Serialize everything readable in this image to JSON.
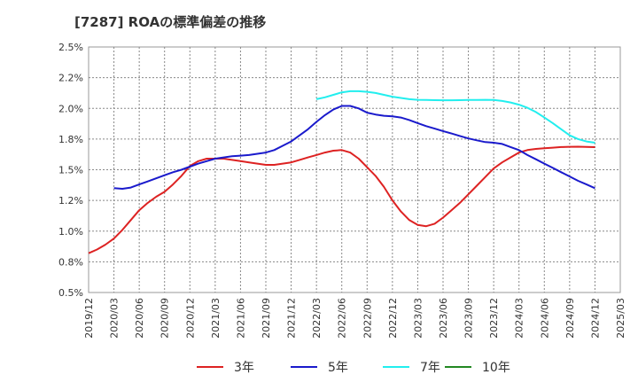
{
  "chart_data": {
    "type": "line",
    "title": "[7287]  ROAの標準偏差の推移",
    "x_ticks": [
      "2019/12",
      "2020/03",
      "2020/06",
      "2020/09",
      "2020/12",
      "2021/03",
      "2021/06",
      "2021/09",
      "2021/12",
      "2022/03",
      "2022/06",
      "2022/09",
      "2022/12",
      "2023/03",
      "2023/06",
      "2023/09",
      "2023/12",
      "2024/03",
      "2024/06",
      "2024/09",
      "2024/12",
      "2025/03"
    ],
    "y_ticks": [
      "0.5%",
      "0.8%",
      "1.0%",
      "1.2%",
      "1.5%",
      "1.8%",
      "2.0%",
      "2.2%",
      "2.5%"
    ],
    "ylim": [
      0.5,
      2.5
    ],
    "grid": true,
    "legend_position": "bottom",
    "series": [
      {
        "name": "3年",
        "color": "#dd2222",
        "x": [
          "2019/12",
          "2020/01",
          "2020/02",
          "2020/03",
          "2020/04",
          "2020/05",
          "2020/06",
          "2020/07",
          "2020/08",
          "2020/09",
          "2020/10",
          "2020/11",
          "2020/12",
          "2021/01",
          "2021/02",
          "2021/03",
          "2021/04",
          "2021/05",
          "2021/06",
          "2021/07",
          "2021/08",
          "2021/09",
          "2021/10",
          "2021/11",
          "2021/12",
          "2022/01",
          "2022/02",
          "2022/03",
          "2022/04",
          "2022/05",
          "2022/06",
          "2022/07",
          "2022/08",
          "2022/09",
          "2022/10",
          "2022/11",
          "2022/12",
          "2023/01",
          "2023/02",
          "2023/03",
          "2023/04",
          "2023/05",
          "2023/06",
          "2023/07",
          "2023/08",
          "2023/09",
          "2023/10",
          "2023/11",
          "2023/12",
          "2024/01",
          "2024/02",
          "2024/03",
          "2024/04",
          "2024/05",
          "2024/06",
          "2024/07",
          "2024/08",
          "2024/09",
          "2024/10",
          "2024/11",
          "2024/12"
        ],
        "y": [
          0.82,
          0.85,
          0.89,
          0.94,
          1.01,
          1.09,
          1.17,
          1.23,
          1.28,
          1.32,
          1.38,
          1.45,
          1.53,
          1.57,
          1.59,
          1.59,
          1.59,
          1.58,
          1.57,
          1.56,
          1.55,
          1.54,
          1.54,
          1.55,
          1.56,
          1.58,
          1.6,
          1.62,
          1.64,
          1.655,
          1.66,
          1.64,
          1.59,
          1.52,
          1.45,
          1.36,
          1.25,
          1.16,
          1.09,
          1.05,
          1.04,
          1.06,
          1.11,
          1.17,
          1.23,
          1.3,
          1.37,
          1.44,
          1.51,
          1.56,
          1.6,
          1.64,
          1.66,
          1.67,
          1.675,
          1.68,
          1.685,
          1.687,
          1.688,
          1.686,
          1.684
        ]
      },
      {
        "name": "5年",
        "color": "#1a1acc",
        "x": [
          "2020/03",
          "2020/04",
          "2020/05",
          "2020/06",
          "2020/07",
          "2020/08",
          "2020/09",
          "2020/10",
          "2020/11",
          "2020/12",
          "2021/01",
          "2021/02",
          "2021/03",
          "2021/04",
          "2021/05",
          "2021/06",
          "2021/07",
          "2021/08",
          "2021/09",
          "2021/10",
          "2021/11",
          "2021/12",
          "2022/01",
          "2022/02",
          "2022/03",
          "2022/04",
          "2022/05",
          "2022/06",
          "2022/07",
          "2022/08",
          "2022/09",
          "2022/10",
          "2022/11",
          "2022/12",
          "2023/01",
          "2023/02",
          "2023/03",
          "2023/04",
          "2023/05",
          "2023/06",
          "2023/07",
          "2023/08",
          "2023/09",
          "2023/10",
          "2023/11",
          "2023/12",
          "2024/01",
          "2024/02",
          "2024/03",
          "2024/04",
          "2024/05",
          "2024/06",
          "2024/07",
          "2024/08",
          "2024/09",
          "2024/10",
          "2024/11",
          "2024/12"
        ],
        "y": [
          1.35,
          1.345,
          1.355,
          1.38,
          1.405,
          1.43,
          1.455,
          1.48,
          1.5,
          1.525,
          1.55,
          1.57,
          1.59,
          1.6,
          1.61,
          1.615,
          1.62,
          1.63,
          1.64,
          1.66,
          1.695,
          1.73,
          1.78,
          1.83,
          1.89,
          1.945,
          1.99,
          2.02,
          2.02,
          2.0,
          1.965,
          1.95,
          1.94,
          1.935,
          1.925,
          1.905,
          1.88,
          1.855,
          1.835,
          1.815,
          1.795,
          1.775,
          1.755,
          1.74,
          1.725,
          1.72,
          1.71,
          1.685,
          1.66,
          1.62,
          1.585,
          1.55,
          1.515,
          1.48,
          1.445,
          1.41,
          1.38,
          1.35
        ]
      },
      {
        "name": "7年",
        "color": "#22eeee",
        "x": [
          "2022/03",
          "2022/04",
          "2022/05",
          "2022/06",
          "2022/07",
          "2022/08",
          "2022/09",
          "2022/10",
          "2022/11",
          "2022/12",
          "2023/01",
          "2023/02",
          "2023/03",
          "2023/04",
          "2023/05",
          "2023/06",
          "2023/07",
          "2023/08",
          "2023/09",
          "2023/10",
          "2023/11",
          "2023/12",
          "2024/01",
          "2024/02",
          "2024/03",
          "2024/04",
          "2024/05",
          "2024/06",
          "2024/07",
          "2024/08",
          "2024/09",
          "2024/10",
          "2024/11",
          "2024/12"
        ],
        "y": [
          2.075,
          2.09,
          2.11,
          2.13,
          2.14,
          2.14,
          2.135,
          2.125,
          2.11,
          2.095,
          2.085,
          2.075,
          2.07,
          2.068,
          2.067,
          2.066,
          2.066,
          2.067,
          2.068,
          2.069,
          2.07,
          2.068,
          2.06,
          2.048,
          2.03,
          2.005,
          1.97,
          1.925,
          1.88,
          1.83,
          1.78,
          1.75,
          1.73,
          1.72
        ]
      },
      {
        "name": "10年",
        "color": "#228822",
        "x": [],
        "y": []
      }
    ]
  }
}
